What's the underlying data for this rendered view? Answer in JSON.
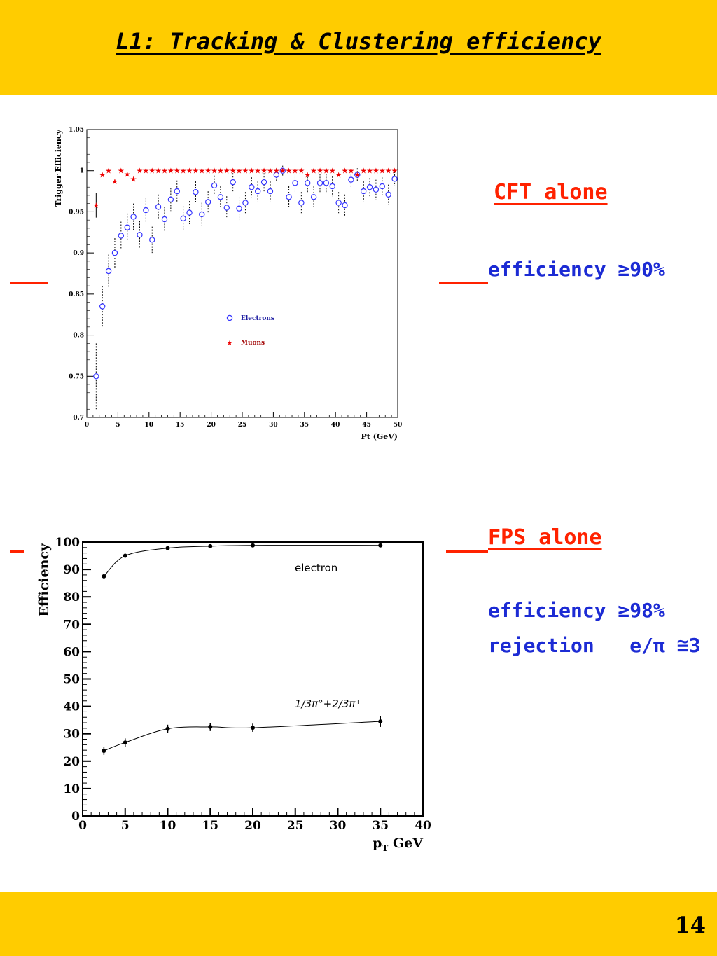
{
  "slide": {
    "title": "L1: Tracking & Clustering efficiency",
    "page_number": "14",
    "background_band_color": "#ffcc00"
  },
  "annotations": {
    "cft_heading": "CFT alone",
    "cft_efficiency": "efficiency ≥90%",
    "fps_heading": "FPS alone",
    "fps_efficiency": "efficiency ≥98%",
    "fps_rejection": "rejection   e/π ≅3",
    "heading_color": "#ff2200",
    "note_color": "#1c2bd4"
  },
  "chart_data": [
    {
      "type": "scatter",
      "xlabel": "Pt (GeV)",
      "ylabel": "Trigger Efficiency",
      "xlim": [
        0,
        50
      ],
      "ylim": [
        0.7,
        1.05
      ],
      "xticks": [
        "0",
        "5",
        "10",
        "15",
        "20",
        "25",
        "30",
        "35",
        "40",
        "45",
        "50"
      ],
      "yticks": [
        "0.7",
        "0.75",
        "0.8",
        "0.85",
        "0.9",
        "0.95",
        "1",
        "1.05"
      ],
      "grid": false,
      "legend_position": "middle-right",
      "series": [
        {
          "name": "Electrons",
          "marker": "open-circle",
          "color": "#3333ff",
          "x": [
            1.5,
            2.5,
            3.5,
            4.5,
            5.5,
            6.5,
            7.5,
            8.5,
            9.5,
            10.5,
            11.5,
            12.5,
            13.5,
            14.5,
            15.5,
            16.5,
            17.5,
            18.5,
            19.5,
            20.5,
            21.5,
            22.5,
            23.5,
            24.5,
            25.5,
            26.5,
            27.5,
            28.5,
            29.5,
            30.5,
            31.5,
            32.5,
            33.5,
            34.5,
            35.5,
            36.5,
            37.5,
            38.5,
            39.5,
            40.5,
            41.5,
            42.5,
            43.5,
            44.5,
            45.5,
            46.5,
            47.5,
            48.5,
            49.5
          ],
          "y": [
            0.75,
            0.835,
            0.878,
            0.9,
            0.921,
            0.931,
            0.944,
            0.922,
            0.952,
            0.916,
            0.956,
            0.941,
            0.965,
            0.975,
            0.942,
            0.949,
            0.974,
            0.947,
            0.962,
            0.982,
            0.968,
            0.955,
            0.986,
            0.954,
            0.961,
            0.98,
            0.975,
            0.986,
            0.975,
            0.995,
            1.0,
            0.968,
            0.985,
            0.961,
            0.985,
            0.968,
            0.985,
            0.985,
            0.981,
            0.961,
            0.958,
            0.989,
            0.995,
            0.975,
            0.98,
            0.977,
            0.981,
            0.971,
            0.99
          ],
          "err": [
            0.04,
            0.025,
            0.02,
            0.018,
            0.017,
            0.017,
            0.016,
            0.017,
            0.015,
            0.016,
            0.015,
            0.015,
            0.014,
            0.013,
            0.015,
            0.014,
            0.013,
            0.014,
            0.013,
            0.012,
            0.013,
            0.014,
            0.011,
            0.014,
            0.013,
            0.012,
            0.012,
            0.011,
            0.012,
            0.008,
            0.006,
            0.013,
            0.011,
            0.013,
            0.011,
            0.013,
            0.011,
            0.011,
            0.012,
            0.013,
            0.013,
            0.01,
            0.008,
            0.012,
            0.011,
            0.012,
            0.011,
            0.012,
            0.009
          ]
        },
        {
          "name": "Muons",
          "marker": "star",
          "color": "#ee0000",
          "x": [
            1.5,
            2.5,
            3.5,
            4.5,
            5.5,
            6.5,
            7.5,
            8.5,
            9.5,
            10.5,
            11.5,
            12.5,
            13.5,
            14.5,
            15.5,
            16.5,
            17.5,
            18.5,
            19.5,
            20.5,
            21.5,
            22.5,
            23.5,
            24.5,
            25.5,
            26.5,
            27.5,
            28.5,
            29.5,
            30.5,
            31.5,
            32.5,
            33.5,
            34.5,
            35.5,
            36.5,
            37.5,
            38.5,
            39.5,
            40.5,
            41.5,
            42.5,
            43.5,
            44.5,
            45.5,
            46.5,
            47.5,
            48.5,
            49.5
          ],
          "y": [
            0.958,
            0.995,
            1.0,
            0.987,
            1.0,
            0.996,
            0.99,
            1.0,
            1.0,
            1.0,
            1.0,
            1.0,
            1.0,
            1.0,
            1.0,
            1.0,
            1.0,
            1.0,
            1.0,
            1.0,
            1.0,
            1.0,
            1.0,
            1.0,
            1.0,
            1.0,
            1.0,
            1.0,
            1.0,
            1.0,
            1.0,
            1.0,
            1.0,
            1.0,
            0.995,
            1.0,
            1.0,
            1.0,
            1.0,
            0.995,
            1.0,
            1.0,
            0.995,
            1.0,
            1.0,
            1.0,
            1.0,
            1.0,
            1.0
          ],
          "err": [
            0.015,
            0,
            0,
            0,
            0,
            0,
            0,
            0,
            0,
            0,
            0,
            0,
            0,
            0,
            0,
            0,
            0,
            0,
            0,
            0,
            0,
            0,
            0,
            0,
            0,
            0,
            0,
            0,
            0,
            0,
            0,
            0,
            0,
            0,
            0,
            0,
            0,
            0,
            0,
            0,
            0,
            0,
            0,
            0,
            0,
            0,
            0,
            0,
            0
          ]
        }
      ]
    },
    {
      "type": "line",
      "xlabel": "p_T GeV",
      "ylabel": "Efficiency",
      "xlim": [
        0,
        40
      ],
      "ylim": [
        0,
        100
      ],
      "xticks": [
        "0",
        "5",
        "10",
        "15",
        "20",
        "25",
        "30",
        "35",
        "40"
      ],
      "yticks": [
        "0",
        "10",
        "20",
        "30",
        "40",
        "50",
        "60",
        "70",
        "80",
        "90",
        "100"
      ],
      "grid": false,
      "series": [
        {
          "name": "electron",
          "x": [
            2.5,
            5,
            10,
            15,
            20,
            35
          ],
          "y": [
            87.5,
            95,
            97.8,
            98.5,
            98.8,
            98.8
          ],
          "err": [
            0.6,
            0.5,
            0.4,
            0.4,
            0.4,
            0.4
          ]
        },
        {
          "name": "1/3π°+2/3π⁺",
          "x": [
            2.5,
            5,
            10,
            15,
            20,
            35
          ],
          "y": [
            23.8,
            26.8,
            31.8,
            32.5,
            32.2,
            34.5
          ],
          "err": [
            1.5,
            1.5,
            1.5,
            1.5,
            1.5,
            2.0
          ]
        }
      ]
    }
  ]
}
